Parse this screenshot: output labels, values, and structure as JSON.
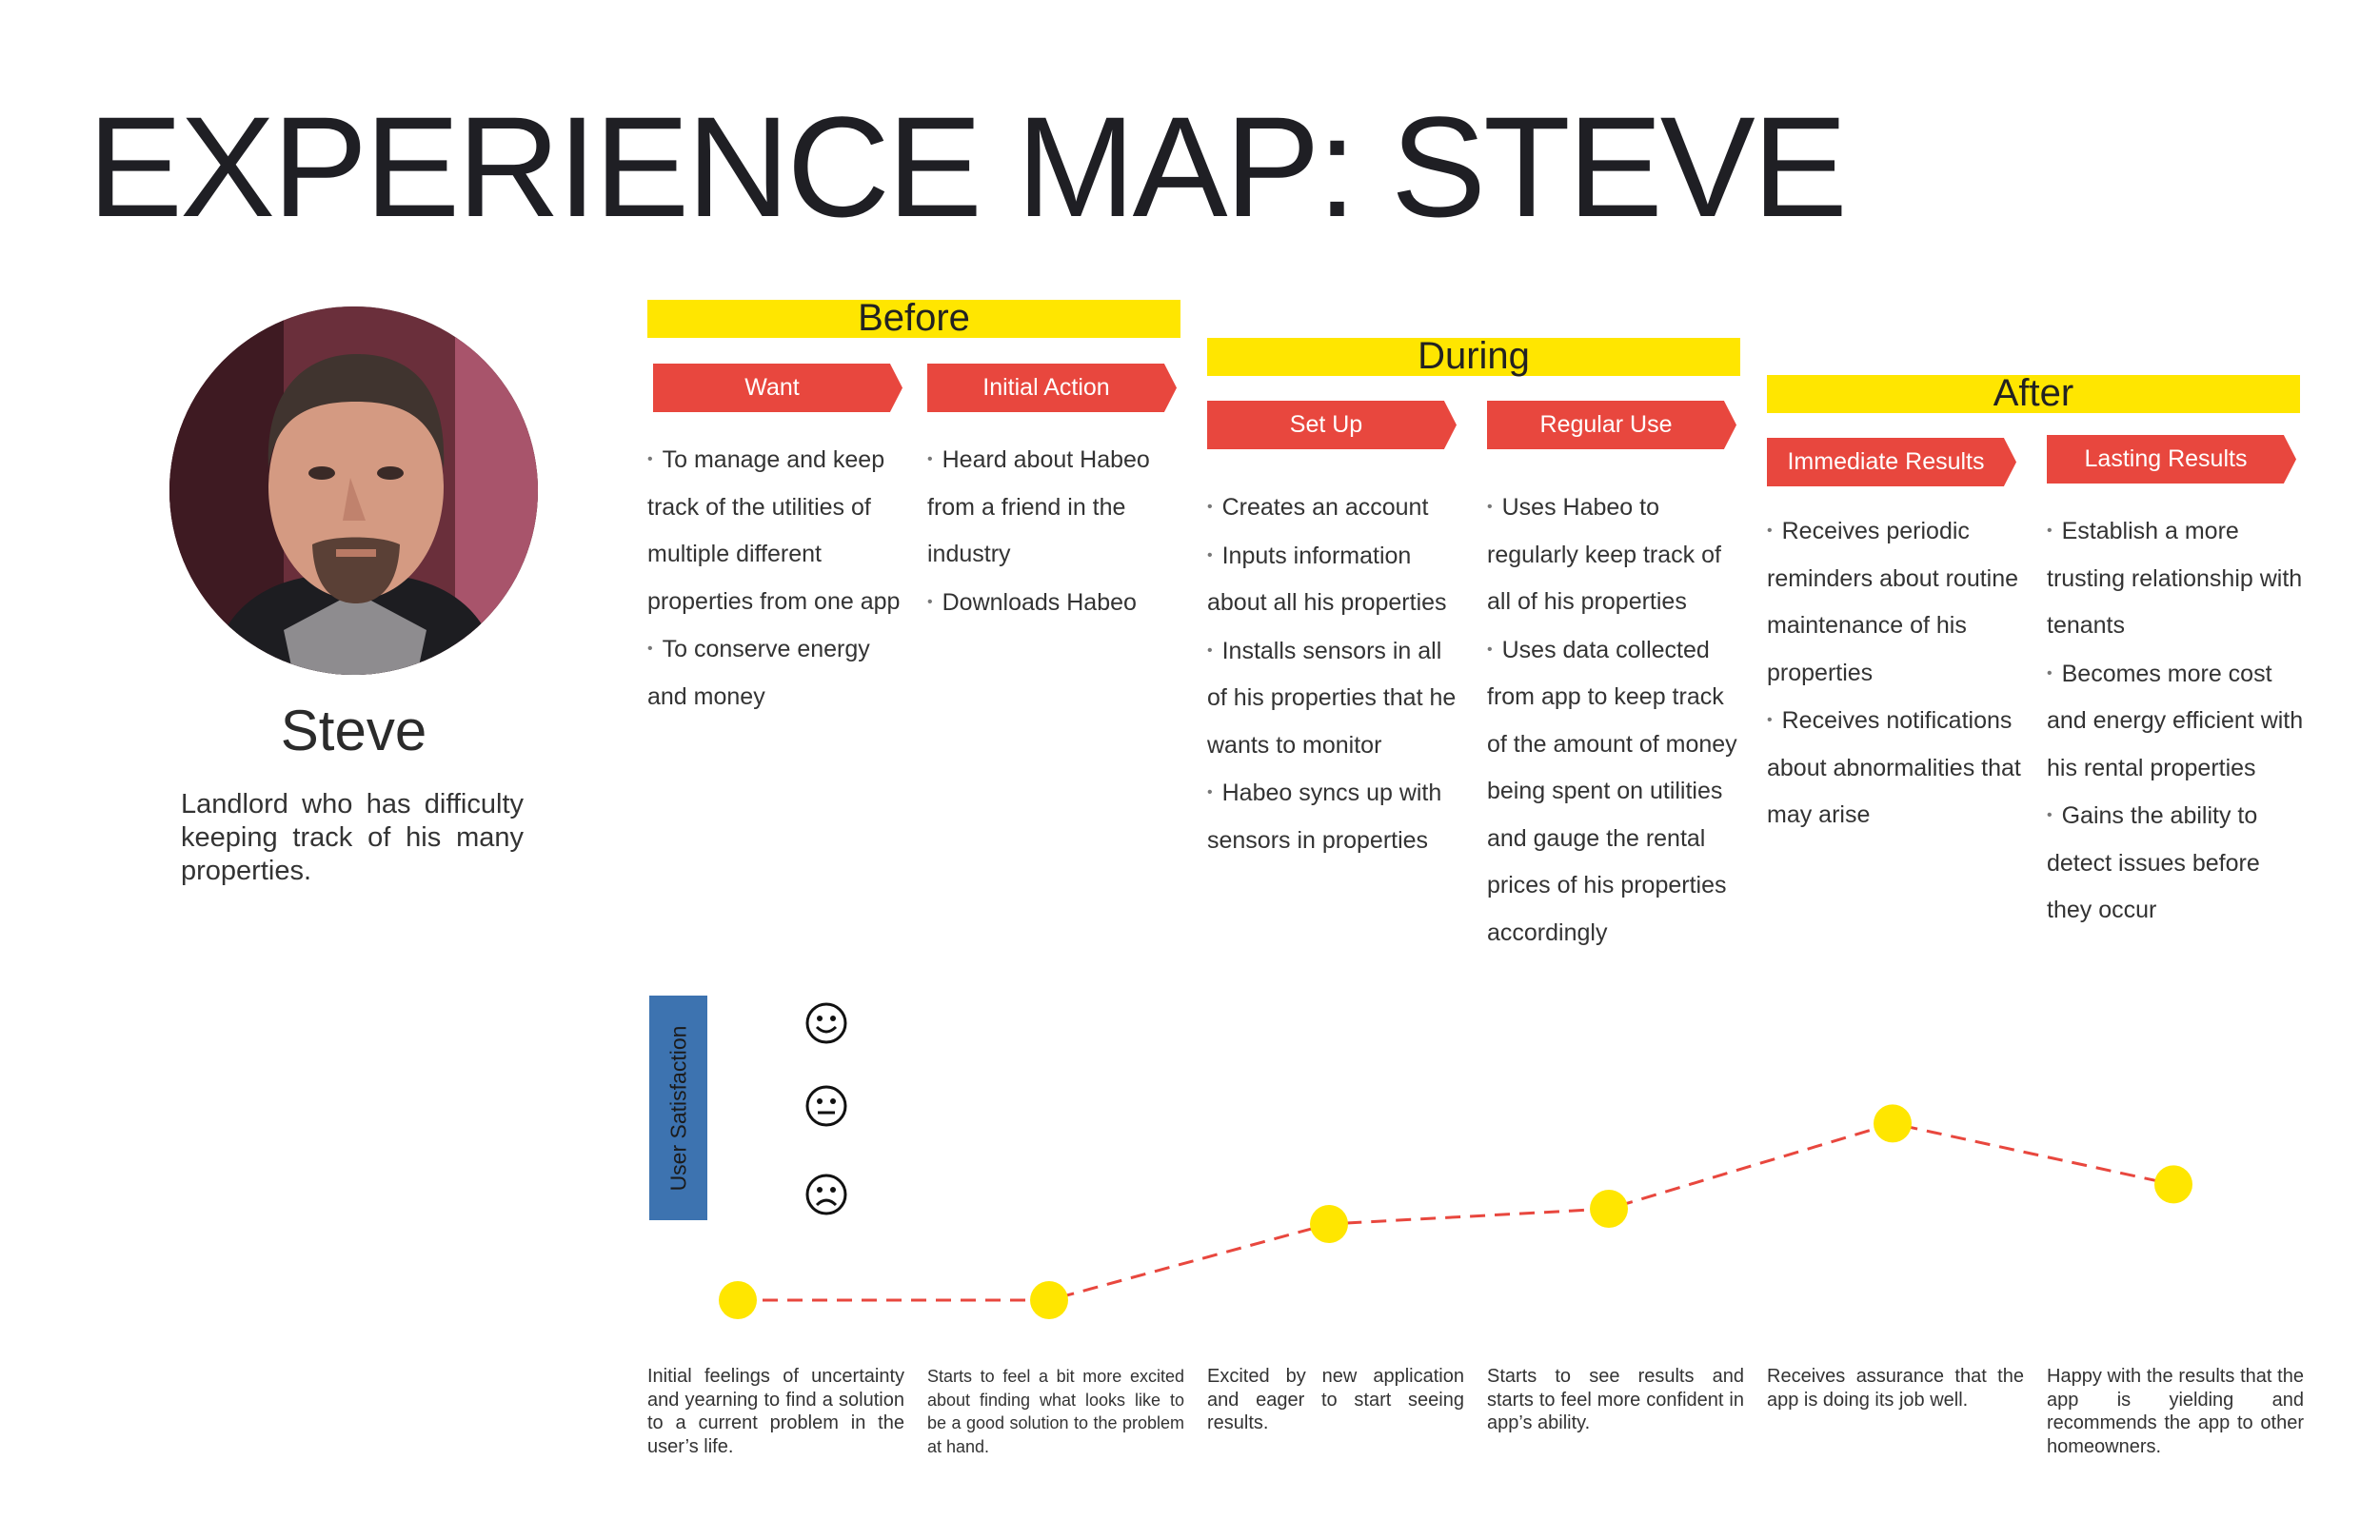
{
  "title": "EXPERIENCE MAP: STEVE",
  "persona": {
    "name": "Steve",
    "description": "Landlord who has difficulty keeping track of his many properties."
  },
  "phases": [
    {
      "label": "Before"
    },
    {
      "label": "During"
    },
    {
      "label": "After"
    }
  ],
  "stages": [
    {
      "label": "Want",
      "items": [
        "To manage and keep track of the utilities of multiple different properties from one app",
        "To conserve energy and money"
      ]
    },
    {
      "label": "Initial Action",
      "items": [
        "Heard about Habeo from a friend in the industry",
        "Downloads Habeo"
      ]
    },
    {
      "label": "Set Up",
      "items": [
        "Creates an account",
        "Inputs information about all his properties",
        "Installs sensors in all of his properties that he wants to monitor",
        "Habeo syncs up with sensors in properties"
      ]
    },
    {
      "label": "Regular Use",
      "items": [
        "Uses Habeo to regularly keep track of all of his properties",
        "Uses data collected from app to keep track of the amount of money being spent on utilities and gauge the rental prices of his properties accordingly"
      ]
    },
    {
      "label": "Immediate Results",
      "items": [
        "Receives periodic reminders about routine maintenance of his properties",
        "Receives notifications about abnormalities that may arise"
      ]
    },
    {
      "label": "Lasting Results",
      "items": [
        "Establish a more trusting relationship with tenants",
        "Becomes more cost and energy efficient with his rental properties",
        "Gains the ability to detect issues before they occur"
      ]
    }
  ],
  "satisfaction": {
    "label": "User Satisfaction",
    "levels": [
      "happy-face-icon",
      "neutral-face-icon",
      "sad-face-icon"
    ],
    "scores": [
      0.0,
      0.0,
      0.25,
      0.3,
      0.58,
      0.38
    ],
    "colors": {
      "point": "#ffe600",
      "line": "#e8473e"
    }
  },
  "captions": [
    "Initial feelings of uncertainty and yearning to find a solution to a current problem in the user’s life.",
    "Starts to feel a bit more excited about finding what looks like to be a good solution to the problem at hand.",
    "Excited by new application and eager to start seeing results.",
    "Starts to see results and starts to feel more confident in app’s ability.",
    "Receives assurance that the app is doing its job well.",
    "Happy with the results that the app is yielding and recommends the app to other homeowners."
  ],
  "colors": {
    "phase": "#ffe600",
    "stage": "#e8473e",
    "satisfaction_bar": "#3d73b0"
  }
}
